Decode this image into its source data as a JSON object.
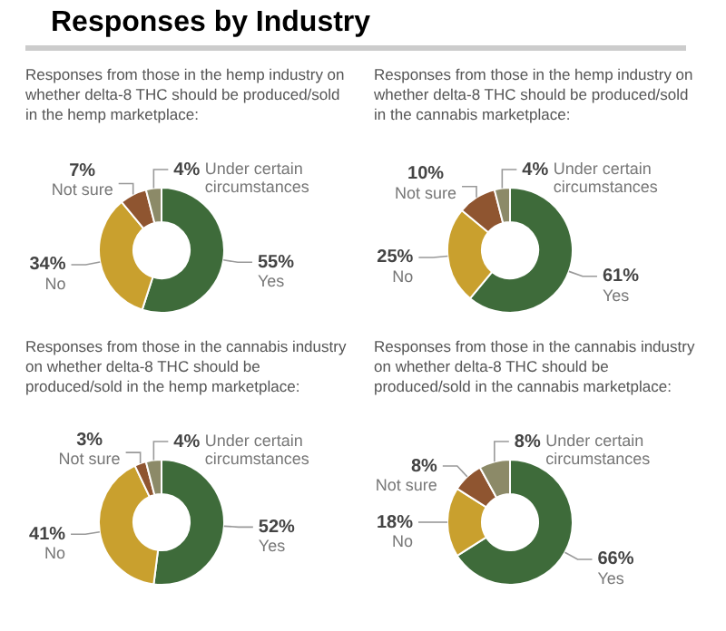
{
  "chart_data": [
    {
      "type": "donut",
      "title": "Responses by Industry",
      "subtitle": "Responses from those in the hemp industry on whether delta-8 THC should be produced/sold in the hemp marketplace:",
      "categories": [
        "Yes",
        "No",
        "Not sure",
        "Under certain circumstances"
      ],
      "values": [
        55,
        34,
        7,
        4
      ],
      "value_labels": [
        "55%",
        "34%",
        "7%",
        "4%"
      ],
      "colors": [
        "#3e6b3a",
        "#c9a02e",
        "#8f5530",
        "#8c8a68"
      ]
    },
    {
      "type": "donut",
      "subtitle": "Responses from those in the hemp industry on whether delta-8 THC should be produced/sold in the cannabis marketplace:",
      "categories": [
        "Yes",
        "No",
        "Not sure",
        "Under certain circumstances"
      ],
      "values": [
        61,
        25,
        10,
        4
      ],
      "value_labels": [
        "61%",
        "25%",
        "10%",
        "4%"
      ],
      "colors": [
        "#3e6b3a",
        "#c9a02e",
        "#8f5530",
        "#8c8a68"
      ]
    },
    {
      "type": "donut",
      "subtitle": "Responses from those in the cannabis industry on whether delta-8 THC should be produced/sold in the hemp marketplace:",
      "categories": [
        "Yes",
        "No",
        "Not sure",
        "Under certain circumstances"
      ],
      "values": [
        52,
        41,
        3,
        4
      ],
      "value_labels": [
        "52%",
        "41%",
        "3%",
        "4%"
      ],
      "colors": [
        "#3e6b3a",
        "#c9a02e",
        "#8f5530",
        "#8c8a68"
      ]
    },
    {
      "type": "donut",
      "subtitle": "Responses from those in the cannabis industry on whether delta-8 THC should be produced/sold in the cannabis marketplace:",
      "categories": [
        "Yes",
        "No",
        "Not sure",
        "Under certain circumstances"
      ],
      "values": [
        66,
        18,
        8,
        8
      ],
      "value_labels": [
        "66%",
        "18%",
        "8%",
        "8%"
      ],
      "colors": [
        "#3e6b3a",
        "#c9a02e",
        "#8f5530",
        "#8c8a68"
      ]
    }
  ]
}
